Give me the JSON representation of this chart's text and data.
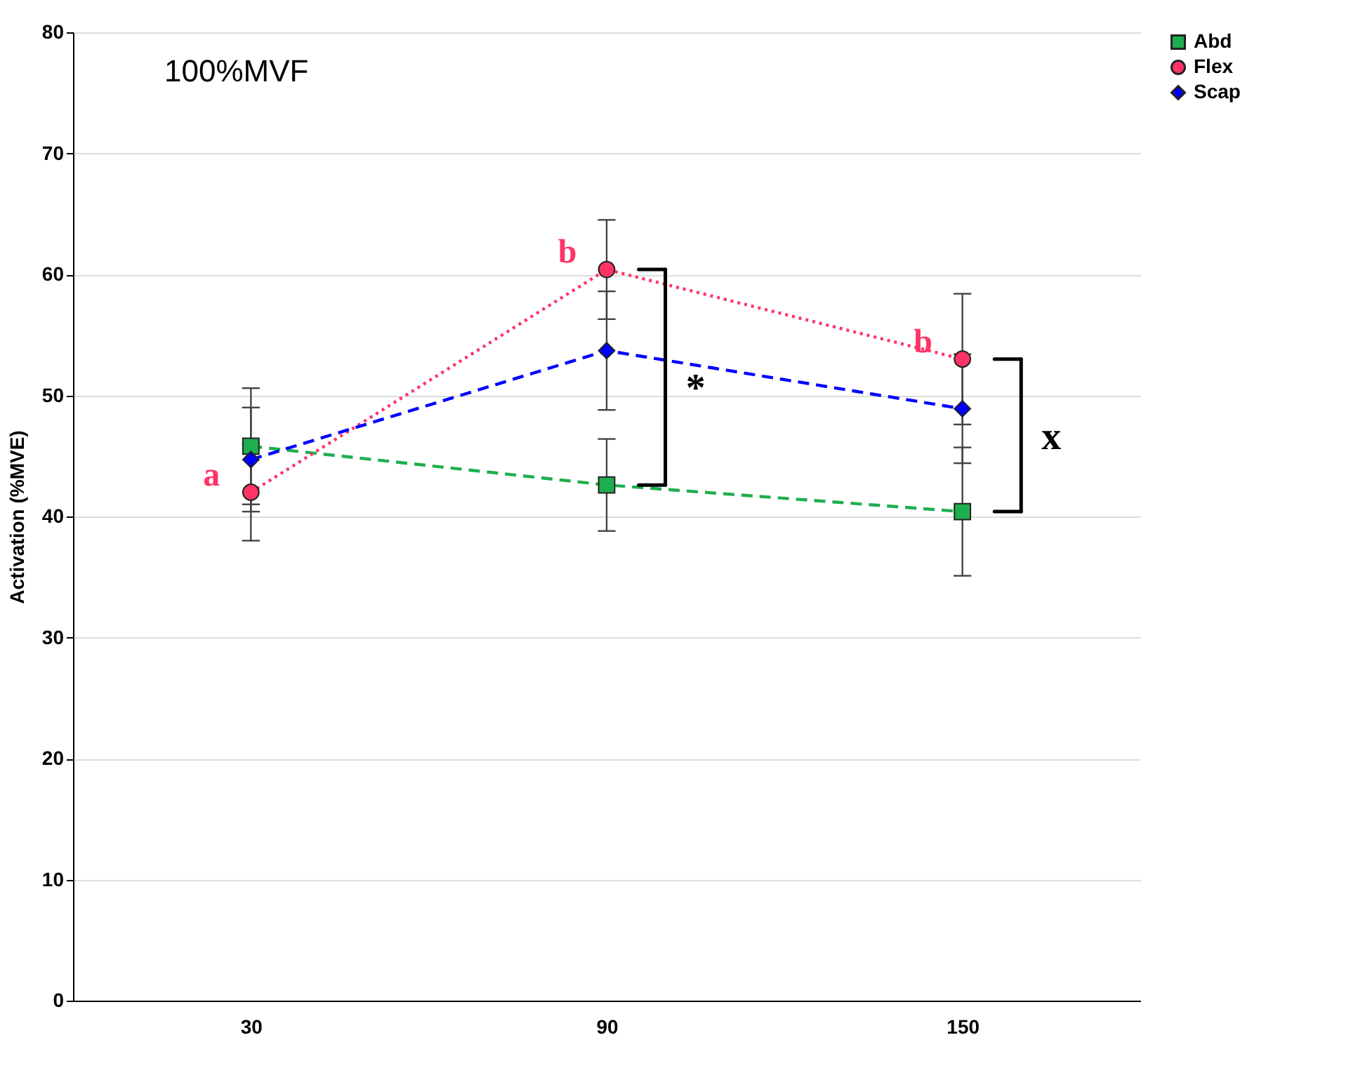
{
  "chart_data": {
    "type": "line",
    "ylabel": "Activation (%MVE)",
    "categories": [
      "30",
      "90",
      "150"
    ],
    "ylim": [
      0,
      80
    ],
    "yticks": [
      0,
      10,
      20,
      30,
      40,
      50,
      60,
      70,
      80
    ],
    "grid": "y",
    "legend": "right",
    "series": [
      {
        "name": "Abd",
        "color": "#1fae4f",
        "marker": "square",
        "line_style": "dashed",
        "values": [
          45.8,
          42.6,
          40.4
        ],
        "errors": [
          4.8,
          3.8,
          5.3
        ]
      },
      {
        "name": "Flex",
        "color": "#ff3366",
        "marker": "circle",
        "line_style": "dotted",
        "values": [
          42.0,
          60.4,
          53.0
        ],
        "errors": [
          4.0,
          4.1,
          5.4
        ]
      },
      {
        "name": "Scap",
        "color": "#0000ff",
        "marker": "diamond",
        "line_style": "dashed",
        "values": [
          44.7,
          53.7,
          48.9
        ],
        "errors": [
          4.3,
          4.9,
          4.5
        ]
      }
    ],
    "annotations": [
      "100%MVF",
      {
        "text": "a",
        "x": "30",
        "y": 42.0
      },
      {
        "text": "b",
        "x": "90",
        "y": 60.4
      },
      {
        "text": "b",
        "x": "150",
        "y": 53.0
      },
      {
        "text": "*",
        "x": "90",
        "y": 50.5
      },
      {
        "text": "x",
        "x": "150",
        "y": 46.5
      }
    ]
  }
}
